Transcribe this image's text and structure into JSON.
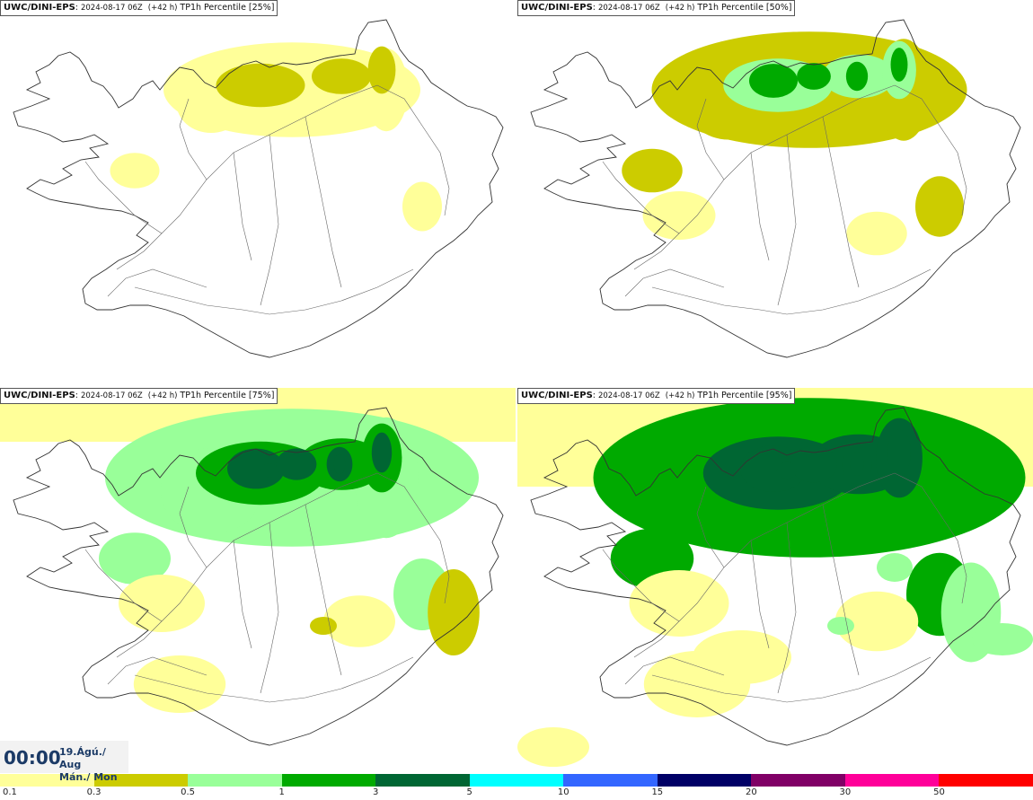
{
  "panels": [
    {
      "model": "UWC/DINI-EPS",
      "run": "2024-08-17 06Z",
      "lead": "(+42 h)",
      "param": "TP1h Percentile [25%]",
      "level": 1
    },
    {
      "model": "UWC/DINI-EPS",
      "run": "2024-08-17 06Z",
      "lead": "(+42 h)",
      "param": "TP1h Percentile [50%]",
      "level": 2
    },
    {
      "model": "UWC/DINI-EPS",
      "run": "2024-08-17 06Z",
      "lead": "(+42 h)",
      "param": "TP1h Percentile [75%]",
      "level": 3
    },
    {
      "model": "UWC/DINI-EPS",
      "run": "2024-08-17 06Z",
      "lead": "(+42 h)",
      "param": "TP1h Percentile [95%]",
      "level": 4
    }
  ],
  "valid_time": {
    "time": "00:00",
    "date_line": "19.Ágú./ Aug",
    "day_line": "Mán./ Mon"
  },
  "legend": {
    "thresholds": [
      "0.1",
      "0.3",
      "0.5",
      "1",
      "3",
      "5",
      "10",
      "15",
      "20",
      "30",
      "50"
    ],
    "colors": [
      "#ffff99",
      "#cccc00",
      "#99ff99",
      "#00aa00",
      "#006633",
      "#00ffff",
      "#3366ff",
      "#000066",
      "#800066",
      "#ff0099",
      "#ff0000"
    ]
  },
  "map_colors": {
    "coast": "#333333",
    "roads": "#666666",
    "l1": "#ffff99",
    "l2": "#cccc00",
    "l3": "#99ff99",
    "l4": "#00aa00",
    "l5": "#006633"
  }
}
